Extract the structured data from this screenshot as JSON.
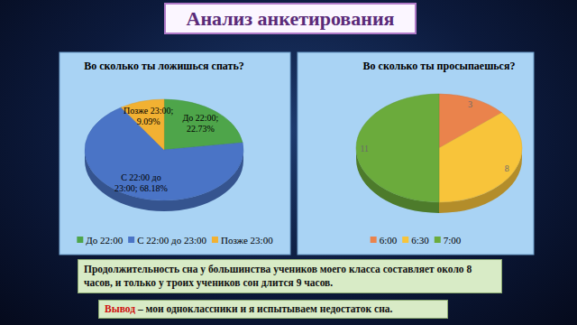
{
  "title": "Анализ анкетирования",
  "chart_data": [
    {
      "type": "pie",
      "title": "Во сколько ты  ложишься спать?",
      "categories": [
        "До 22:00",
        "С 22:00 до 23:00",
        "Позже 23:00"
      ],
      "values": [
        22.73,
        68.18,
        9.09
      ],
      "value_labels": [
        "До 22:00; 22.73%",
        "С 22:00 до 23:00; 68.18%",
        "Позже 23:00; 9.09%"
      ],
      "colors": [
        "#4ea54a",
        "#4a74c6",
        "#f2b132"
      ],
      "data_labels": true,
      "legend": "bottom"
    },
    {
      "type": "pie",
      "title": "Во  сколько ты просыпаешься?",
      "categories": [
        "6:00",
        "6:30",
        "7:00"
      ],
      "values": [
        3,
        8,
        11
      ],
      "colors": [
        "#ea834c",
        "#f8c43a",
        "#6bab3c"
      ],
      "data_labels": true,
      "legend": "bottom"
    }
  ],
  "note": "Продолжительность сна  у большинства учеников моего класса  составляет около 8 часов, и только у троих учеников сон длится 9 часов.",
  "conclusion": {
    "label": "Вывод",
    "text": " – мои одноклассники и я испытываем недостаток сна."
  }
}
